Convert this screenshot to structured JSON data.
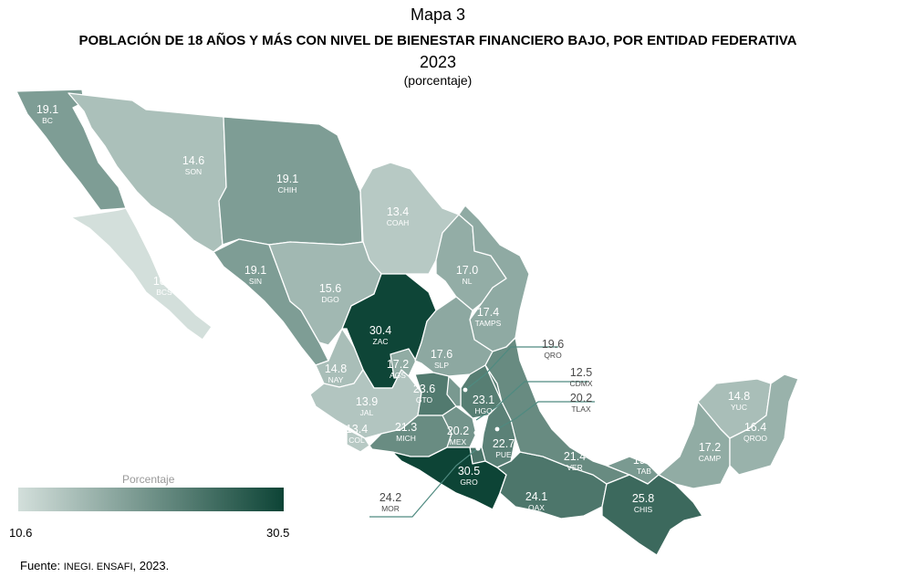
{
  "header": {
    "map_label": "Mapa 3",
    "title": "POBLACIÓN DE 18 AÑOS Y MÁS CON NIVEL DE BIENESTAR FINANCIERO BAJO, POR ENTIDAD FEDERATIVA",
    "year": "2023",
    "unit": "(porcentaje)"
  },
  "legend": {
    "title": "Porcentaje",
    "min_label": "10.6",
    "max_label": "30.5",
    "min": 10.6,
    "max": 30.5,
    "color_low": "#d3dfdb",
    "color_high": "#0d4436"
  },
  "source": {
    "prefix": "Fuente: ",
    "org": "INEGI. ENSAFI",
    "suffix": ", 2023."
  },
  "states": [
    {
      "abbr": "BC",
      "value": 19.1,
      "value_label": "19.1"
    },
    {
      "abbr": "SON",
      "value": 14.6,
      "value_label": "14.6"
    },
    {
      "abbr": "CHIH",
      "value": 19.1,
      "value_label": "19.1"
    },
    {
      "abbr": "COAH",
      "value": 13.4,
      "value_label": "13.4"
    },
    {
      "abbr": "BCS",
      "value": 10.6,
      "value_label": "10.6"
    },
    {
      "abbr": "SIN",
      "value": 19.1,
      "value_label": "19.1"
    },
    {
      "abbr": "DGO",
      "value": 15.6,
      "value_label": "15.6"
    },
    {
      "abbr": "NL",
      "value": 17.0,
      "value_label": "17.0"
    },
    {
      "abbr": "TAMPS",
      "value": 17.4,
      "value_label": "17.4"
    },
    {
      "abbr": "ZAC",
      "value": 30.4,
      "value_label": "30.4"
    },
    {
      "abbr": "AGS",
      "value": 17.2,
      "value_label": "17.2"
    },
    {
      "abbr": "SLP",
      "value": 17.6,
      "value_label": "17.6"
    },
    {
      "abbr": "NAY",
      "value": 14.8,
      "value_label": "14.8"
    },
    {
      "abbr": "JAL",
      "value": 13.9,
      "value_label": "13.9"
    },
    {
      "abbr": "COL",
      "value": 13.4,
      "value_label": "13.4"
    },
    {
      "abbr": "GTO",
      "value": 23.6,
      "value_label": "23.6"
    },
    {
      "abbr": "HGO",
      "value": 23.1,
      "value_label": "23.1"
    },
    {
      "abbr": "QRO",
      "value": 19.6,
      "value_label": "19.6"
    },
    {
      "abbr": "MICH",
      "value": 21.3,
      "value_label": "21.3"
    },
    {
      "abbr": "MEX",
      "value": 20.2,
      "value_label": "20.2"
    },
    {
      "abbr": "CDMX",
      "value": 12.5,
      "value_label": "12.5"
    },
    {
      "abbr": "TLAX",
      "value": 20.2,
      "value_label": "20.2"
    },
    {
      "abbr": "PUE",
      "value": 22.7,
      "value_label": "22.7"
    },
    {
      "abbr": "MOR",
      "value": 24.2,
      "value_label": "24.2"
    },
    {
      "abbr": "GRO",
      "value": 30.5,
      "value_label": "30.5"
    },
    {
      "abbr": "OAX",
      "value": 24.1,
      "value_label": "24.1"
    },
    {
      "abbr": "VER",
      "value": 21.4,
      "value_label": "21.4"
    },
    {
      "abbr": "TAB",
      "value": 19.5,
      "value_label": "19.5"
    },
    {
      "abbr": "CHIS",
      "value": 25.8,
      "value_label": "25.8"
    },
    {
      "abbr": "CAMP",
      "value": 17.2,
      "value_label": "17.2"
    },
    {
      "abbr": "YUC",
      "value": 14.8,
      "value_label": "14.8"
    },
    {
      "abbr": "QROO",
      "value": 16.4,
      "value_label": "16.4"
    }
  ]
}
